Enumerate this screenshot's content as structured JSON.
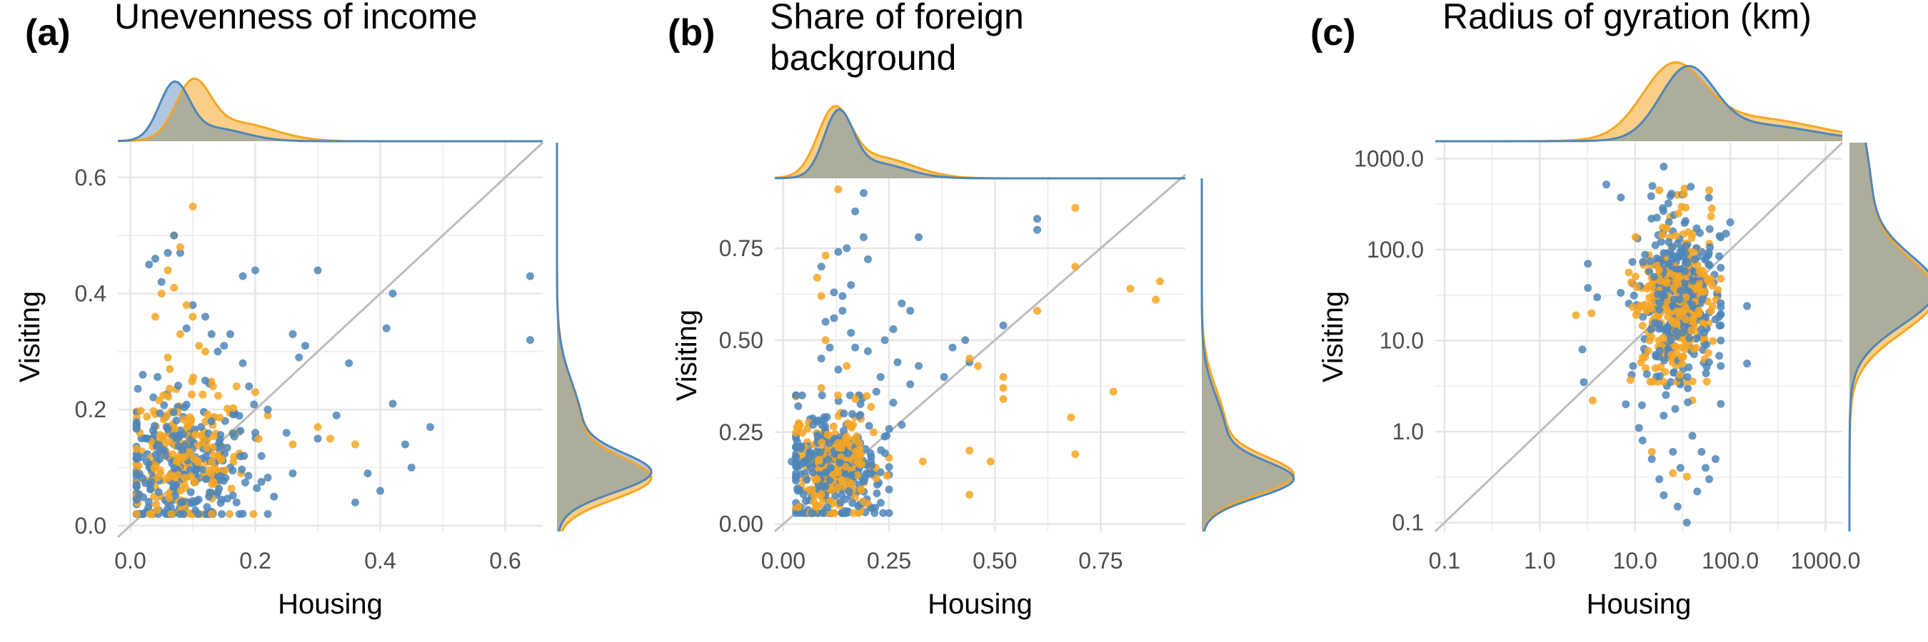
{
  "figure": {
    "panels": [
      {
        "tag": "(a)",
        "title": "Unevenness of income"
      },
      {
        "tag": "(b)",
        "title": "Share of foreign background"
      },
      {
        "tag": "(c)",
        "title": "Radius of gyration (km)"
      }
    ]
  },
  "colors": {
    "housing": "#f5a623",
    "visiting": "#4f86b8",
    "overlap": "#8e9b87",
    "diagonal": "#bdbdbd",
    "grid": "#e6e6e6"
  },
  "chart_data": [
    {
      "type": "scatter",
      "title": "Unevenness of income",
      "xlabel": "Housing",
      "ylabel": "Visiting",
      "xlim": [
        -0.02,
        0.66
      ],
      "ylim": [
        -0.01,
        0.66
      ],
      "xticks": [
        0.0,
        0.2,
        0.4,
        0.6
      ],
      "xtick_labels": [
        "0.0",
        "0.2",
        "0.4",
        "0.6"
      ],
      "yticks": [
        0.0,
        0.2,
        0.4,
        0.6
      ],
      "ytick_labels": [
        "0.0",
        "0.2",
        "0.4",
        "0.6"
      ],
      "grid": true,
      "diagonal": "y = x",
      "marginal_density_peaks": {
        "blue_x": 0.07,
        "orange_x": 0.1,
        "blue_y": 0.09,
        "orange_y": 0.08
      },
      "series": [
        {
          "color": "blue",
          "points": [
            [
              0.64,
              0.43
            ],
            [
              0.64,
              0.32
            ],
            [
              0.42,
              0.4
            ],
            [
              0.41,
              0.34
            ],
            [
              0.4,
              0.06
            ],
            [
              0.38,
              0.09
            ],
            [
              0.35,
              0.28
            ],
            [
              0.3,
              0.44
            ],
            [
              0.28,
              0.31
            ],
            [
              0.27,
              0.29
            ],
            [
              0.26,
              0.33
            ],
            [
              0.48,
              0.17
            ],
            [
              0.45,
              0.1
            ],
            [
              0.44,
              0.14
            ],
            [
              0.42,
              0.21
            ],
            [
              0.33,
              0.19
            ],
            [
              0.3,
              0.15
            ],
            [
              0.25,
              0.16
            ],
            [
              0.22,
              0.2
            ],
            [
              0.21,
              0.12
            ],
            [
              0.2,
              0.16
            ],
            [
              0.19,
              0.24
            ],
            [
              0.18,
              0.28
            ],
            [
              0.16,
              0.33
            ],
            [
              0.15,
              0.31
            ],
            [
              0.14,
              0.3
            ],
            [
              0.12,
              0.25
            ],
            [
              0.2,
              0.44
            ],
            [
              0.18,
              0.43
            ],
            [
              0.06,
              0.47
            ],
            [
              0.04,
              0.46
            ],
            [
              0.03,
              0.45
            ],
            [
              0.05,
              0.42
            ],
            [
              0.07,
              0.5
            ],
            [
              0.08,
              0.47
            ],
            [
              0.1,
              0.38
            ],
            [
              0.09,
              0.34
            ],
            [
              0.12,
              0.36
            ],
            [
              0.13,
              0.33
            ],
            [
              0.02,
              0.26
            ],
            [
              0.23,
              0.05
            ],
            [
              0.26,
              0.09
            ],
            [
              0.17,
              0.04
            ],
            [
              0.16,
              0.1
            ],
            [
              0.36,
              0.04
            ]
          ]
        },
        {
          "color": "orange",
          "points": [
            [
              0.1,
              0.55
            ],
            [
              0.07,
              0.5
            ],
            [
              0.08,
              0.48
            ],
            [
              0.06,
              0.44
            ],
            [
              0.07,
              0.41
            ],
            [
              0.05,
              0.4
            ],
            [
              0.09,
              0.38
            ],
            [
              0.1,
              0.36
            ],
            [
              0.08,
              0.33
            ],
            [
              0.11,
              0.31
            ],
            [
              0.26,
              0.14
            ],
            [
              0.32,
              0.15
            ],
            [
              0.36,
              0.14
            ],
            [
              0.3,
              0.17
            ],
            [
              0.22,
              0.19
            ],
            [
              0.2,
              0.23
            ],
            [
              0.17,
              0.24
            ],
            [
              0.04,
              0.36
            ],
            [
              0.12,
              0.3
            ],
            [
              0.06,
              0.29
            ]
          ]
        }
      ],
      "cloud": {
        "x_range": [
          0.01,
          0.22
        ],
        "y_range": [
          0.02,
          0.27
        ],
        "center": [
          0.08,
          0.1
        ],
        "blue_count": 260,
        "orange_count": 220
      }
    },
    {
      "type": "scatter",
      "title": "Share of foreign background",
      "xlabel": "Housing",
      "ylabel": "Visiting",
      "xlim": [
        -0.02,
        0.95
      ],
      "ylim": [
        -0.02,
        0.94
      ],
      "xticks": [
        0.0,
        0.25,
        0.5,
        0.75
      ],
      "xtick_labels": [
        "0.00",
        "0.25",
        "0.50",
        "0.75"
      ],
      "yticks": [
        0.0,
        0.25,
        0.5,
        0.75
      ],
      "ytick_labels": [
        "0.00",
        "0.25",
        "0.50",
        "0.75"
      ],
      "grid": true,
      "diagonal": "y = x",
      "marginal_density_peaks": {
        "blue_x": 0.13,
        "orange_x": 0.12,
        "blue_y": 0.12,
        "orange_y": 0.13
      },
      "series": [
        {
          "color": "blue",
          "points": [
            [
              0.6,
              0.83
            ],
            [
              0.6,
              0.8
            ],
            [
              0.19,
              0.9
            ],
            [
              0.17,
              0.85
            ],
            [
              0.19,
              0.78
            ],
            [
              0.15,
              0.75
            ],
            [
              0.2,
              0.72
            ],
            [
              0.13,
              0.74
            ],
            [
              0.16,
              0.65
            ],
            [
              0.14,
              0.62
            ],
            [
              0.16,
              0.52
            ],
            [
              0.14,
              0.58
            ],
            [
              0.12,
              0.56
            ],
            [
              0.1,
              0.55
            ],
            [
              0.32,
              0.78
            ],
            [
              0.28,
              0.6
            ],
            [
              0.3,
              0.58
            ],
            [
              0.26,
              0.53
            ],
            [
              0.4,
              0.48
            ],
            [
              0.52,
              0.54
            ],
            [
              0.44,
              0.44
            ],
            [
              0.43,
              0.5
            ],
            [
              0.38,
              0.4
            ],
            [
              0.32,
              0.43
            ],
            [
              0.24,
              0.5
            ],
            [
              0.27,
              0.44
            ],
            [
              0.3,
              0.38
            ],
            [
              0.26,
              0.33
            ],
            [
              0.28,
              0.27
            ],
            [
              0.22,
              0.36
            ],
            [
              0.23,
              0.4
            ],
            [
              0.2,
              0.47
            ],
            [
              0.11,
              0.48
            ],
            [
              0.09,
              0.45
            ],
            [
              0.13,
              0.42
            ],
            [
              0.03,
              0.21
            ],
            [
              0.02,
              0.17
            ],
            [
              0.17,
              0.48
            ],
            [
              0.12,
              0.63
            ],
            [
              0.09,
              0.7
            ]
          ]
        },
        {
          "color": "orange",
          "points": [
            [
              0.13,
              0.91
            ],
            [
              0.1,
              0.73
            ],
            [
              0.08,
              0.67
            ],
            [
              0.09,
              0.62
            ],
            [
              0.69,
              0.86
            ],
            [
              0.69,
              0.7
            ],
            [
              0.89,
              0.66
            ],
            [
              0.82,
              0.64
            ],
            [
              0.88,
              0.61
            ],
            [
              0.6,
              0.58
            ],
            [
              0.44,
              0.45
            ],
            [
              0.46,
              0.43
            ],
            [
              0.52,
              0.4
            ],
            [
              0.52,
              0.37
            ],
            [
              0.52,
              0.34
            ],
            [
              0.78,
              0.36
            ],
            [
              0.68,
              0.29
            ],
            [
              0.69,
              0.19
            ],
            [
              0.44,
              0.2
            ],
            [
              0.44,
              0.08
            ],
            [
              0.49,
              0.17
            ],
            [
              0.33,
              0.17
            ],
            [
              0.1,
              0.5
            ],
            [
              0.15,
              0.43
            ],
            [
              0.09,
              0.37
            ]
          ]
        }
      ],
      "cloud": {
        "x_range": [
          0.03,
          0.25
        ],
        "y_range": [
          0.03,
          0.35
        ],
        "center": [
          0.12,
          0.15
        ],
        "blue_count": 280,
        "orange_count": 220
      }
    },
    {
      "type": "scatter",
      "title": "Radius of gyration (km)",
      "xlabel": "Housing",
      "ylabel": "Visiting",
      "scale": "log10",
      "xlim": [
        0.08,
        1500
      ],
      "ylim": [
        0.08,
        1500
      ],
      "xticks": [
        0.1,
        1,
        10,
        100,
        1000
      ],
      "xtick_labels": [
        "0.1",
        "1.0",
        "10.0",
        "100.0",
        "1000.0"
      ],
      "yticks": [
        0.1,
        1,
        10,
        100,
        1000
      ],
      "ytick_labels": [
        "0.1",
        "1.0",
        "10.0",
        "100.0",
        "1000.0"
      ],
      "grid": true,
      "diagonal": "y = x",
      "marginal_density_peaks": {
        "blue_x": 35,
        "orange_x": 25,
        "blue_y": 35,
        "orange_y": 30
      },
      "series": [
        {
          "color": "blue",
          "points": [
            [
              5,
              520
            ],
            [
              20,
              820
            ],
            [
              3.2,
              70
            ],
            [
              3.2,
              38
            ],
            [
              4,
              30
            ],
            [
              2.8,
              8
            ],
            [
              2.9,
              3.5
            ],
            [
              150,
              24
            ],
            [
              150,
              5.6
            ],
            [
              100,
              200
            ],
            [
              90,
              150
            ],
            [
              8,
              2
            ],
            [
              11,
              1.1
            ],
            [
              15,
              0.5
            ],
            [
              18,
              0.3
            ],
            [
              20,
              0.2
            ],
            [
              28,
              0.15
            ],
            [
              35,
              0.1
            ],
            [
              45,
              0.22
            ],
            [
              60,
              0.3
            ],
            [
              55,
              0.4
            ],
            [
              50,
              0.6
            ],
            [
              70,
              0.5
            ],
            [
              25,
              0.6
            ],
            [
              30,
              0.4
            ],
            [
              40,
              0.9
            ],
            [
              12,
              0.8
            ],
            [
              20,
              1.5
            ]
          ]
        },
        {
          "color": "orange",
          "points": [
            [
              3.5,
              20
            ],
            [
              2.4,
              19
            ],
            [
              3.6,
              2.2
            ],
            [
              15,
              0.6
            ],
            [
              25,
              0.35
            ],
            [
              35,
              0.32
            ],
            [
              40,
              2.2
            ],
            [
              60,
              450
            ],
            [
              33,
              470
            ],
            [
              18,
              450
            ],
            [
              28,
              400
            ]
          ]
        }
      ],
      "cloud": {
        "log_x_range": [
          0.85,
          1.9
        ],
        "log_y_range": [
          0.25,
          2.7
        ],
        "log_center": [
          1.45,
          1.45
        ],
        "blue_count": 330,
        "orange_count": 300
      }
    }
  ]
}
